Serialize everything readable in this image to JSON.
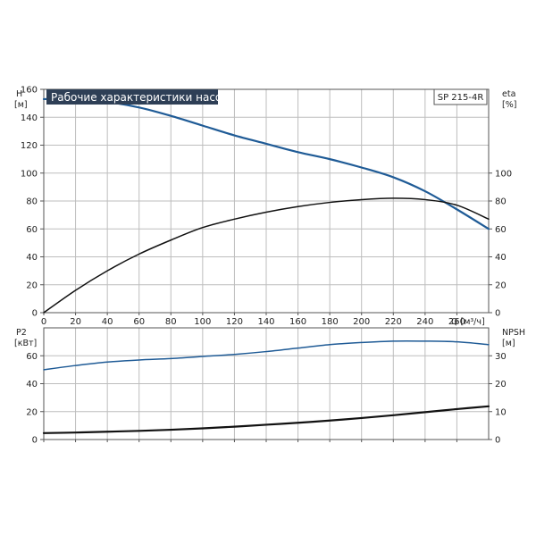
{
  "chart_data": [
    {
      "type": "line",
      "title": "Рабочие характеристики насоса",
      "model": "SP 215-4R",
      "xlabel": "Q [м³/ч]",
      "xlim": [
        0,
        280
      ],
      "xticks": [
        0,
        20,
        40,
        60,
        80,
        100,
        120,
        140,
        160,
        180,
        200,
        220,
        240,
        260
      ],
      "ylabel_left": [
        "H",
        "[м]"
      ],
      "ylim_left": [
        0,
        160
      ],
      "yticks_left": [
        0,
        20,
        40,
        60,
        80,
        100,
        120,
        140,
        160
      ],
      "ylabel_right": [
        "eta",
        "[%]"
      ],
      "ylim_right": [
        0,
        160
      ],
      "yticks_right": [
        0,
        20,
        40,
        60,
        80,
        100
      ],
      "grid": true,
      "series": [
        {
          "axis": "left",
          "color": "#1f5b96",
          "x": [
            0,
            20,
            40,
            60,
            80,
            100,
            120,
            140,
            160,
            180,
            200,
            220,
            240,
            260,
            280
          ],
          "values": [
            153,
            153,
            151,
            147,
            141,
            134,
            127,
            121,
            115,
            110,
            104,
            97,
            87,
            74,
            60
          ]
        },
        {
          "axis": "right",
          "color": "#111111",
          "x": [
            0,
            20,
            40,
            60,
            80,
            100,
            120,
            140,
            160,
            180,
            200,
            220,
            240,
            260,
            280
          ],
          "values": [
            0,
            16,
            30,
            42,
            52,
            61,
            67,
            72,
            76,
            79,
            81,
            82,
            81,
            77,
            67
          ]
        }
      ]
    },
    {
      "type": "line",
      "xlim": [
        0,
        280
      ],
      "xticks": [
        0,
        20,
        40,
        60,
        80,
        100,
        120,
        140,
        160,
        180,
        200,
        220,
        240,
        260
      ],
      "ylabel_left": [
        "P2",
        "[кВт]"
      ],
      "ylim_left": [
        0,
        80
      ],
      "yticks_left": [
        0,
        20,
        40,
        60
      ],
      "ylabel_right": [
        "NPSH",
        "[м]"
      ],
      "ylim_right": [
        0,
        40
      ],
      "yticks_right": [
        0,
        10,
        20,
        30
      ],
      "grid": true,
      "series": [
        {
          "axis": "left",
          "color": "#1f5b96",
          "x": [
            0,
            20,
            40,
            60,
            80,
            100,
            120,
            140,
            160,
            180,
            200,
            220,
            240,
            260,
            280
          ],
          "values": [
            50,
            53,
            55.5,
            57,
            58,
            59.5,
            61,
            63,
            65.5,
            68,
            69.5,
            70.5,
            70.5,
            70,
            68
          ]
        },
        {
          "axis": "right",
          "color": "#111111",
          "x": [
            0,
            20,
            40,
            60,
            80,
            100,
            120,
            140,
            160,
            180,
            200,
            220,
            240,
            260,
            280
          ],
          "values": [
            2.3,
            2.5,
            2.8,
            3.1,
            3.5,
            4.0,
            4.6,
            5.3,
            6.0,
            6.8,
            7.7,
            8.7,
            9.8,
            10.9,
            11.9
          ]
        }
      ]
    }
  ]
}
